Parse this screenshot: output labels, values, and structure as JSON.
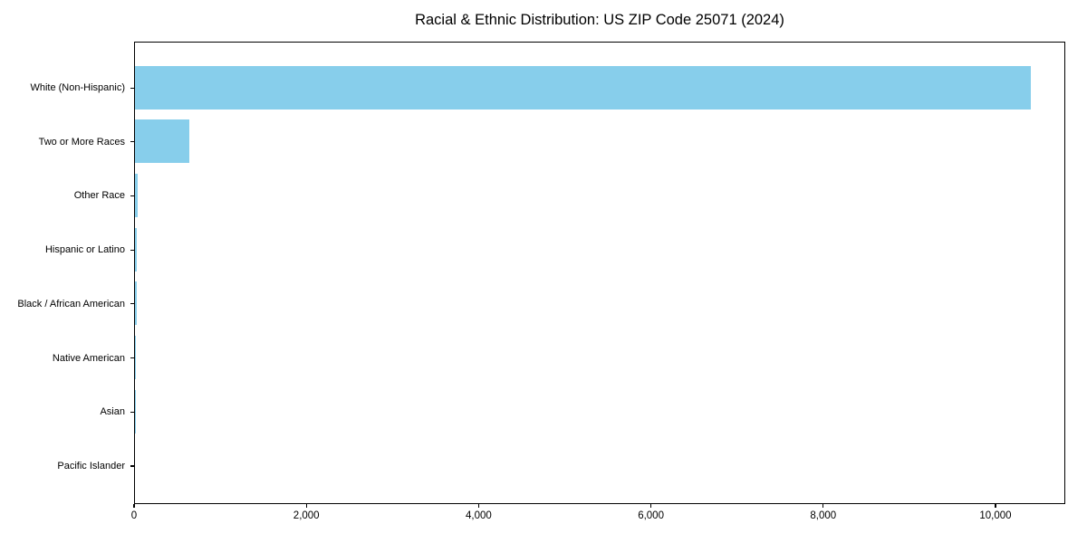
{
  "chart_data": {
    "type": "bar",
    "orientation": "horizontal",
    "title": "Racial & Ethnic Distribution: US ZIP Code 25071 (2024)",
    "categories": [
      "White (Non-Hispanic)",
      "Two or More Races",
      "Other Race",
      "Hispanic or Latino",
      "Black / African American",
      "Native American",
      "Asian",
      "Pacific Islander"
    ],
    "values": [
      10400,
      630,
      30,
      25,
      20,
      10,
      5,
      0
    ],
    "xlabel": "",
    "ylabel": "",
    "xlim": [
      0,
      10810
    ],
    "x_ticks": [
      0,
      2000,
      4000,
      6000,
      8000,
      10000
    ],
    "grid": false,
    "legend_position": "none",
    "bar_color": "#87CEEB"
  },
  "colors": {
    "bar": "#87CEEB",
    "axis": "#000000",
    "text": "#000000",
    "background": "#ffffff"
  }
}
